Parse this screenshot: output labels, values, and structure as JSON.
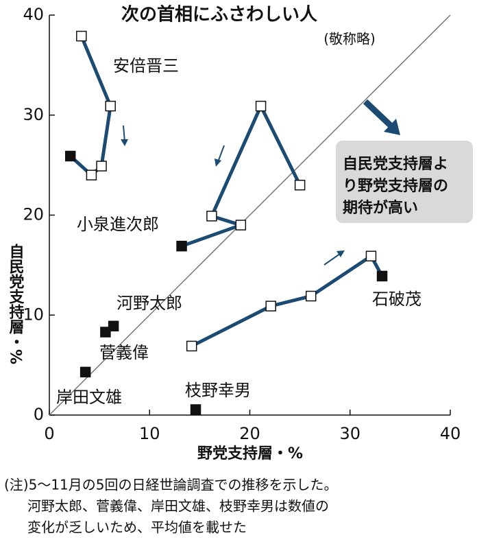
{
  "chart_data": {
    "type": "connected-scatter",
    "title": "次の首相にふさわしい人",
    "subtitle": "(敬称略)",
    "x_label": "野党支持層・%",
    "y_label": "自民党支持層・%",
    "xlim": [
      0,
      40
    ],
    "xticks": [
      0,
      10,
      20,
      30,
      40
    ],
    "ylim": [
      0,
      40
    ],
    "yticks": [
      0,
      10,
      20,
      30,
      40
    ],
    "grid": false,
    "diagonal": true,
    "annotation": [
      "自民党支持層よ",
      "り野党支持層の",
      "期待が高い"
    ],
    "series": [
      {
        "name": "安倍晋三",
        "color": "#1b4a73",
        "x": [
          3.2,
          6.1,
          5.2,
          4.2,
          2.1
        ],
        "y": [
          37.9,
          30.9,
          24.9,
          24.0,
          25.9
        ]
      },
      {
        "name": "小泉進次郎",
        "color": "#1b4a73",
        "x": [
          25.0,
          21.1,
          16.2,
          19.1,
          13.2
        ],
        "y": [
          23.0,
          30.9,
          19.9,
          19.0,
          16.9
        ]
      },
      {
        "name": "石破茂",
        "color": "#1b4a73",
        "x": [
          14.2,
          22.1,
          26.1,
          32.1,
          33.2
        ],
        "y": [
          6.9,
          10.9,
          11.9,
          15.9,
          13.9
        ]
      },
      {
        "name": "河野太郎",
        "color": "#1b4a73",
        "x": [
          6.4
        ],
        "y": [
          8.9
        ]
      },
      {
        "name": "菅義偉",
        "color": "#1b4a73",
        "x": [
          5.6
        ],
        "y": [
          8.3
        ]
      },
      {
        "name": "岸田文雄",
        "color": "#1b4a73",
        "x": [
          3.6
        ],
        "y": [
          4.3
        ]
      },
      {
        "name": "枝野幸男",
        "color": "#1b4a73",
        "x": [
          14.6
        ],
        "y": [
          0.55
        ]
      }
    ],
    "note": [
      "(注)5～11月の5回の日経世論調査での推移を示した。",
      "河野太郎、菅義偉、岸田文雄、枝野幸男は数値の",
      "変化が乏しいため、平均値を載せた"
    ]
  }
}
